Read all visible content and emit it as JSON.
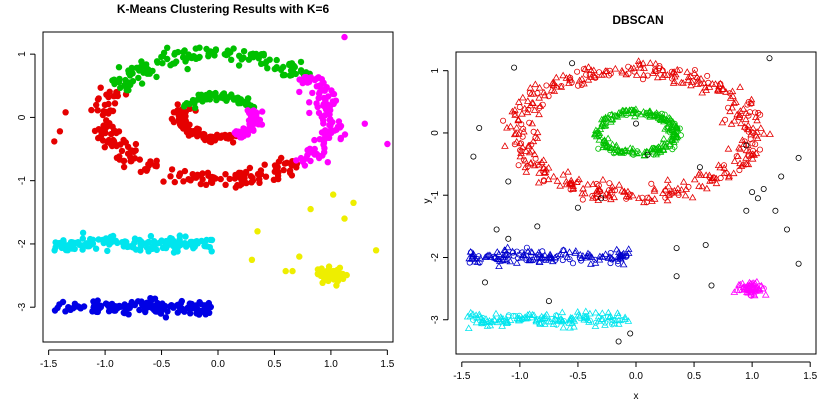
{
  "chart_data": [
    {
      "type": "scatter",
      "title": "K-Means Clustering Results with K=6",
      "xlabel": "",
      "ylabel": "",
      "xlim": [
        -1.55,
        1.55
      ],
      "ylim": [
        -3.55,
        1.35
      ],
      "xticks": [
        -1.5,
        -1.0,
        -0.5,
        0.0,
        0.5,
        1.0,
        1.5
      ],
      "xtick_labels": [
        "-1.5",
        "-1.0",
        "-0.5",
        "0.0",
        "0.5",
        "1.0",
        "1.5"
      ],
      "yticks": [
        -3,
        -2,
        -1,
        0,
        1
      ],
      "ytick_labels": [
        "-3",
        "-2",
        "-1",
        "0",
        "1"
      ],
      "marker": "filled-circle",
      "series": [
        {
          "name": "cluster-1-outer-left",
          "color": "#e50000",
          "shape": "ring-sector",
          "center": [
            0,
            0
          ],
          "radius": 1.0,
          "spread": 0.11,
          "angle_range_deg": [
            155,
            315
          ],
          "count": 180
        },
        {
          "name": "cluster-1-inner-left",
          "color": "#e50000",
          "shape": "ring-sector",
          "center": [
            0,
            0
          ],
          "radius": 0.33,
          "spread": 0.05,
          "angle_range_deg": [
            150,
            300
          ],
          "count": 90
        },
        {
          "name": "cluster-2-top",
          "color": "#00c000",
          "shape": "ring-sector",
          "center": [
            0,
            0
          ],
          "radius": 1.0,
          "spread": 0.11,
          "angle_range_deg": [
            40,
            155
          ],
          "count": 130
        },
        {
          "name": "cluster-2-inner-top",
          "color": "#00c000",
          "shape": "ring-sector",
          "center": [
            0,
            0
          ],
          "radius": 0.33,
          "spread": 0.05,
          "angle_range_deg": [
            25,
            150
          ],
          "count": 70
        },
        {
          "name": "cluster-3-right",
          "color": "#ff00ff",
          "shape": "ring-sector",
          "center": [
            0,
            0
          ],
          "radius": 1.0,
          "spread": 0.11,
          "angle_range_deg": [
            -45,
            40
          ],
          "count": 110
        },
        {
          "name": "cluster-3-inner-right",
          "color": "#ff00ff",
          "shape": "ring-sector",
          "center": [
            0,
            0
          ],
          "radius": 0.33,
          "spread": 0.05,
          "angle_range_deg": [
            -60,
            25
          ],
          "count": 70
        },
        {
          "name": "cluster-4-cyan-band",
          "color": "#00e5ee",
          "shape": "band",
          "x_range": [
            -1.45,
            -0.05
          ],
          "y_center": -2.0,
          "spread": 0.08,
          "count": 150
        },
        {
          "name": "cluster-5-blue-band",
          "color": "#0000e5",
          "shape": "band",
          "x_range": [
            -1.45,
            -0.05
          ],
          "y_center": -3.0,
          "spread": 0.08,
          "count": 150
        },
        {
          "name": "cluster-6-yellow-blob",
          "color": "#eeee00",
          "shape": "blob",
          "center": [
            1.0,
            -2.5
          ],
          "spread": 0.06,
          "count": 60
        },
        {
          "name": "cluster-6-yellow-outliers",
          "color": "#eeee00",
          "shape": "points",
          "points": [
            [
              0.82,
              -1.45
            ],
            [
              1.02,
              -1.22
            ],
            [
              1.12,
              -1.6
            ],
            [
              0.35,
              -1.8
            ],
            [
              0.6,
              -2.43
            ],
            [
              0.66,
              -2.43
            ],
            [
              1.2,
              -1.35
            ],
            [
              0.72,
              -2.2
            ],
            [
              0.3,
              -2.25
            ],
            [
              1.4,
              -2.1
            ]
          ]
        },
        {
          "name": "cluster-outliers-red",
          "color": "#e50000",
          "shape": "points",
          "points": [
            [
              -1.35,
              0.08
            ],
            [
              -1.45,
              -0.38
            ],
            [
              -1.4,
              -0.22
            ]
          ]
        },
        {
          "name": "cluster-outliers-magenta",
          "color": "#ff00ff",
          "shape": "points",
          "points": [
            [
              1.12,
              1.27
            ],
            [
              1.3,
              -0.1
            ],
            [
              1.5,
              -0.42
            ]
          ]
        },
        {
          "name": "cluster-outliers-green",
          "color": "#00c000",
          "shape": "points",
          "points": [
            [
              -0.45,
              1.1
            ]
          ]
        }
      ]
    },
    {
      "type": "scatter",
      "title": "DBSCAN",
      "xlabel": "x",
      "ylabel": "y",
      "xlim": [
        -1.55,
        1.55
      ],
      "ylim": [
        -3.55,
        1.3
      ],
      "xticks": [
        -1.5,
        -1.0,
        -0.5,
        0.0,
        0.5,
        1.0,
        1.5
      ],
      "xtick_labels": [
        "-1.5",
        "-1.0",
        "-0.5",
        "0.0",
        "0.5",
        "1.0",
        "1.5"
      ],
      "yticks": [
        -3,
        -2,
        -1,
        0,
        1
      ],
      "ytick_labels": [
        "-3",
        "-2",
        "-1",
        "0",
        "1"
      ],
      "marker": "open-triangle-or-circle",
      "series": [
        {
          "name": "cluster-1-outer-ring",
          "color": "#e50000",
          "shape": "ring",
          "center": [
            0,
            0
          ],
          "radius": 1.0,
          "spread": 0.12,
          "count": 420
        },
        {
          "name": "cluster-2-inner-ring",
          "color": "#00c000",
          "shape": "ring",
          "center": [
            0,
            0
          ],
          "radius": 0.33,
          "spread": 0.05,
          "count": 220
        },
        {
          "name": "cluster-3-blue-band",
          "color": "#0000cc",
          "shape": "band",
          "x_range": [
            -1.45,
            -0.05
          ],
          "y_center": -2.0,
          "spread": 0.08,
          "count": 150
        },
        {
          "name": "cluster-4-cyan-band",
          "color": "#00e5ee",
          "shape": "band",
          "x_range": [
            -1.45,
            -0.05
          ],
          "y_center": -3.0,
          "spread": 0.08,
          "count": 150
        },
        {
          "name": "cluster-5-magenta-blob",
          "color": "#ff00ff",
          "shape": "blob",
          "center": [
            1.0,
            -2.5
          ],
          "spread": 0.06,
          "count": 60
        },
        {
          "name": "noise",
          "color": "#000000",
          "shape": "points",
          "points": [
            [
              -1.05,
              1.05
            ],
            [
              -0.55,
              1.12
            ],
            [
              1.15,
              1.2
            ],
            [
              -1.35,
              0.08
            ],
            [
              -1.4,
              -0.38
            ],
            [
              -1.1,
              -0.78
            ],
            [
              0.95,
              -0.2
            ],
            [
              1.4,
              -0.4
            ],
            [
              1.25,
              -0.7
            ],
            [
              1.1,
              -0.9
            ],
            [
              1.05,
              -1.05
            ],
            [
              0.95,
              -1.25
            ],
            [
              1.2,
              -1.25
            ],
            [
              1.3,
              -1.55
            ],
            [
              0.6,
              -1.8
            ],
            [
              0.35,
              -1.85
            ],
            [
              1.4,
              -2.1
            ],
            [
              0.35,
              -2.3
            ],
            [
              -1.2,
              -1.55
            ],
            [
              -1.1,
              -1.7
            ],
            [
              -0.5,
              -1.2
            ],
            [
              -0.3,
              -1.05
            ],
            [
              -0.85,
              -1.5
            ],
            [
              -0.75,
              -2.7
            ],
            [
              -0.05,
              -3.22
            ],
            [
              -0.15,
              -3.35
            ],
            [
              0.0,
              0.15
            ],
            [
              0.1,
              -0.35
            ],
            [
              0.65,
              -2.45
            ],
            [
              1.0,
              -0.95
            ],
            [
              -1.3,
              -2.4
            ],
            [
              0.55,
              -0.55
            ]
          ]
        }
      ]
    }
  ]
}
